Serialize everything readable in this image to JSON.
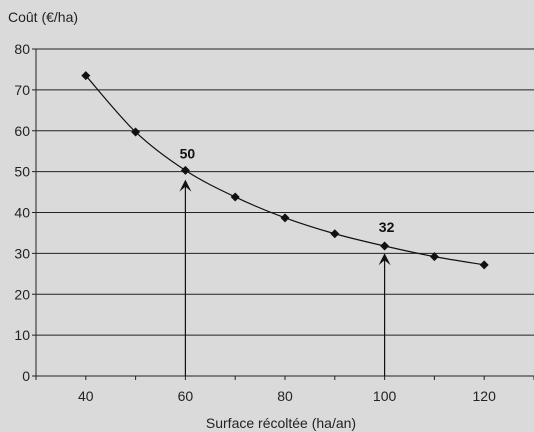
{
  "chart_data": {
    "type": "line",
    "ylabel": "Coût (€/ha)",
    "xlabel": "Surface récoltée (ha/an)",
    "x": [
      40,
      50,
      60,
      70,
      80,
      90,
      100,
      110,
      120
    ],
    "series": [
      {
        "values": [
          73.5,
          59.7,
          50.3,
          43.8,
          38.7,
          34.8,
          31.8,
          29.2,
          27.2
        ]
      }
    ],
    "xlim": [
      30,
      130
    ],
    "ylim": [
      0,
      80
    ],
    "xticks": [
      40,
      60,
      80,
      100,
      120
    ],
    "yticks": [
      0,
      10,
      20,
      30,
      40,
      50,
      60,
      70,
      80
    ],
    "grid": "horizontal",
    "annotations": [
      {
        "x": 60,
        "y": 50,
        "label": "50"
      },
      {
        "x": 100,
        "y": 32,
        "label": "32"
      }
    ],
    "colors": {
      "background": "#dadada",
      "line": "#111111",
      "grid": "#222222"
    }
  }
}
